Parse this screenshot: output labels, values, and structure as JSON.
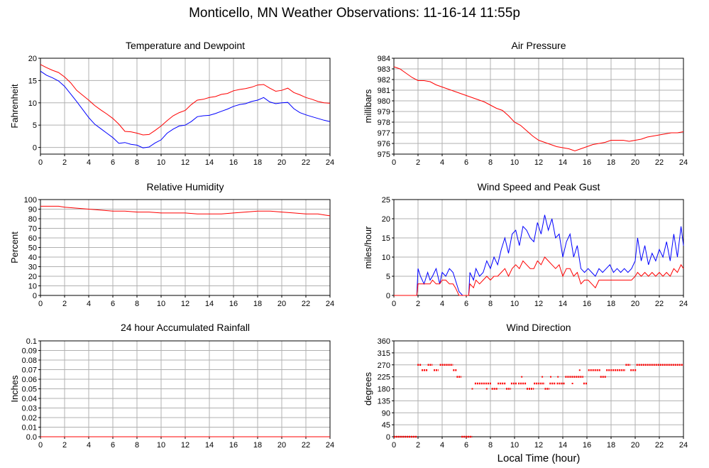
{
  "title": "Monticello, MN Weather Observations: 11-16-14 11:55p",
  "footer_xlabel": "Local Time (hour)",
  "colors": {
    "red": "#ff0000",
    "blue": "#0000ff",
    "grid": "#b0b0b0",
    "axis": "#000000"
  },
  "chart_data": [
    {
      "type": "line",
      "title": "Temperature and Dewpoint",
      "ylabel": "Fahrenheit",
      "xlabel": "",
      "xlim": [
        0,
        24
      ],
      "xticks": [
        0,
        2,
        4,
        6,
        8,
        10,
        12,
        14,
        16,
        18,
        20,
        22,
        24
      ],
      "ylim": [
        -1.5,
        20
      ],
      "yticks": [
        0,
        5,
        10,
        15,
        20
      ],
      "grid": true,
      "series": [
        {
          "color": "#ff0000",
          "x": [
            0,
            0.5,
            1,
            1.5,
            2,
            2.5,
            3,
            3.5,
            4,
            4.5,
            5,
            5.5,
            6,
            6.5,
            7,
            7.5,
            8,
            8.5,
            9,
            9.5,
            10,
            10.5,
            11,
            11.5,
            12,
            12.5,
            13,
            13.5,
            14,
            14.5,
            15,
            15.5,
            16,
            16.5,
            17,
            17.5,
            18,
            18.5,
            19,
            19.5,
            20,
            20.5,
            21,
            21.5,
            22,
            22.5,
            23,
            23.5,
            24
          ],
          "y": [
            18.6,
            17.9,
            17.3,
            16.8,
            15.8,
            14.5,
            12.8,
            11.7,
            10.6,
            9.4,
            8.4,
            7.5,
            6.5,
            5.2,
            3.6,
            3.5,
            3.2,
            2.8,
            2.9,
            3.8,
            4.8,
            6.0,
            7.1,
            7.8,
            8.3,
            9.6,
            10.6,
            10.8,
            11.2,
            11.4,
            11.9,
            12.1,
            12.7,
            13.0,
            13.2,
            13.5,
            14.0,
            14.1,
            13.3,
            12.6,
            12.8,
            13.3,
            12.3,
            11.8,
            11.2,
            10.8,
            10.3,
            10.0,
            9.9
          ]
        },
        {
          "color": "#0000ff",
          "x": [
            0,
            0.5,
            1,
            1.5,
            2,
            2.5,
            3,
            3.5,
            4,
            4.5,
            5,
            5.5,
            6,
            6.5,
            7,
            7.5,
            8,
            8.5,
            9,
            9.5,
            10,
            10.5,
            11,
            11.5,
            12,
            12.5,
            13,
            13.5,
            14,
            14.5,
            15,
            15.5,
            16,
            16.5,
            17,
            17.5,
            18,
            18.5,
            19,
            19.5,
            20,
            20.5,
            21,
            21.5,
            22,
            22.5,
            23,
            23.5,
            24
          ],
          "y": [
            17.1,
            16.2,
            15.6,
            14.9,
            13.7,
            12.0,
            10.3,
            8.5,
            6.7,
            5.2,
            4.2,
            3.2,
            2.2,
            0.9,
            1.1,
            0.7,
            0.5,
            -0.1,
            0.1,
            1.0,
            1.7,
            3.2,
            4.1,
            4.8,
            5.0,
            5.8,
            6.9,
            7.1,
            7.2,
            7.6,
            8.1,
            8.6,
            9.2,
            9.6,
            9.8,
            10.3,
            10.6,
            11.2,
            10.2,
            9.8,
            10.0,
            10.1,
            8.7,
            7.8,
            7.3,
            6.9,
            6.5,
            6.1,
            5.8
          ]
        }
      ]
    },
    {
      "type": "line",
      "title": "Air Pressure",
      "ylabel": "millibars",
      "xlabel": "",
      "xlim": [
        0,
        24
      ],
      "xticks": [
        0,
        2,
        4,
        6,
        8,
        10,
        12,
        14,
        16,
        18,
        20,
        22,
        24
      ],
      "ylim": [
        975,
        984
      ],
      "yticks": [
        975,
        976,
        977,
        978,
        979,
        980,
        981,
        982,
        983,
        984
      ],
      "grid": true,
      "series": [
        {
          "color": "#ff0000",
          "x": [
            0,
            0.5,
            1,
            1.5,
            2,
            2.5,
            3,
            3.5,
            4,
            4.5,
            5,
            5.5,
            6,
            6.5,
            7,
            7.5,
            8,
            8.5,
            9,
            9.5,
            10,
            10.5,
            11,
            11.5,
            12,
            12.5,
            13,
            13.5,
            14,
            14.5,
            15,
            15.5,
            16,
            16.5,
            17,
            17.5,
            18,
            18.5,
            19,
            19.5,
            20,
            20.5,
            21,
            21.5,
            22,
            22.5,
            23,
            23.5,
            24
          ],
          "y": [
            983.2,
            983.0,
            982.6,
            982.2,
            981.9,
            981.9,
            981.8,
            981.5,
            981.3,
            981.1,
            980.9,
            980.7,
            980.5,
            980.3,
            980.1,
            979.9,
            979.6,
            979.3,
            979.1,
            978.6,
            978.0,
            977.7,
            977.2,
            976.7,
            976.3,
            976.1,
            975.9,
            975.7,
            975.6,
            975.5,
            975.3,
            975.5,
            975.7,
            975.9,
            976.0,
            976.1,
            976.3,
            976.3,
            976.3,
            976.2,
            976.3,
            976.4,
            976.6,
            976.7,
            976.8,
            976.9,
            977.0,
            977.0,
            977.1
          ]
        }
      ]
    },
    {
      "type": "line",
      "title": "Relative Humidity",
      "ylabel": "Percent",
      "xlabel": "",
      "xlim": [
        0,
        24
      ],
      "xticks": [
        0,
        2,
        4,
        6,
        8,
        10,
        12,
        14,
        16,
        18,
        20,
        22,
        24
      ],
      "ylim": [
        0,
        100
      ],
      "yticks": [
        0,
        10,
        20,
        30,
        40,
        50,
        60,
        70,
        80,
        90,
        100
      ],
      "grid": true,
      "series": [
        {
          "color": "#ff0000",
          "x": [
            0,
            0.5,
            1,
            1.5,
            2,
            3,
            4,
            5,
            6,
            7,
            8,
            9,
            10,
            11,
            12,
            13,
            14,
            15,
            16,
            17,
            18,
            19,
            20,
            21,
            22,
            23,
            23.5,
            24
          ],
          "y": [
            93,
            93,
            93,
            93,
            92,
            91,
            90,
            89,
            88,
            88,
            87,
            87,
            86,
            86,
            86,
            85,
            85,
            85,
            86,
            87,
            88,
            88,
            87,
            86,
            85,
            85,
            84,
            83
          ]
        }
      ]
    },
    {
      "type": "line",
      "title": "Wind Speed and Peak Gust",
      "ylabel": "miles/hour",
      "xlabel": "",
      "xlim": [
        0,
        24
      ],
      "xticks": [
        0,
        2,
        4,
        6,
        8,
        10,
        12,
        14,
        16,
        18,
        20,
        22,
        24
      ],
      "ylim": [
        0,
        25
      ],
      "yticks": [
        0,
        5,
        10,
        15,
        20,
        25
      ],
      "grid": true,
      "series": [
        {
          "color": "#0000ff",
          "x": [
            0,
            1.9,
            2.0,
            2.2,
            2.5,
            2.8,
            3.0,
            3.2,
            3.5,
            3.8,
            4.0,
            4.3,
            4.6,
            4.9,
            5.1,
            5.4,
            5.7,
            6.0,
            6.2,
            6.3,
            6.6,
            6.8,
            7.1,
            7.4,
            7.7,
            8.0,
            8.3,
            8.6,
            8.9,
            9.2,
            9.5,
            9.8,
            10.1,
            10.4,
            10.7,
            11.0,
            11.3,
            11.6,
            11.9,
            12.2,
            12.5,
            12.8,
            13.1,
            13.4,
            13.7,
            14.0,
            14.3,
            14.6,
            14.9,
            15.2,
            15.5,
            15.8,
            16.1,
            16.4,
            16.7,
            17.0,
            17.3,
            17.6,
            17.9,
            18.2,
            18.5,
            18.8,
            19.1,
            19.4,
            19.7,
            20.0,
            20.2,
            20.5,
            20.8,
            21.1,
            21.4,
            21.7,
            22.0,
            22.3,
            22.6,
            22.9,
            23.2,
            23.5,
            23.8,
            24.0
          ],
          "y": [
            0,
            0,
            7,
            5,
            3,
            6,
            4,
            5,
            7,
            3,
            6,
            5,
            7,
            6,
            4,
            1,
            0,
            0,
            0,
            6,
            4,
            7,
            5,
            6,
            9,
            7,
            10,
            8,
            12,
            15,
            11,
            16,
            17,
            13,
            18,
            17,
            15,
            14,
            19,
            16,
            21,
            17,
            20,
            15,
            16,
            10,
            14,
            16,
            10,
            13,
            7,
            6,
            7,
            6,
            5,
            7,
            6,
            7,
            8,
            6,
            7,
            6,
            7,
            6,
            7,
            9,
            15,
            9,
            13,
            8,
            11,
            9,
            12,
            10,
            14,
            9,
            16,
            10,
            18,
            13
          ]
        },
        {
          "color": "#ff0000",
          "x": [
            0,
            1.9,
            2.0,
            2.2,
            2.5,
            2.8,
            3.0,
            3.2,
            3.5,
            3.8,
            4.0,
            4.3,
            4.6,
            4.9,
            5.1,
            5.4,
            5.7,
            6.0,
            6.2,
            6.3,
            6.6,
            6.8,
            7.1,
            7.4,
            7.7,
            8.0,
            8.3,
            8.6,
            8.9,
            9.2,
            9.5,
            9.8,
            10.1,
            10.4,
            10.7,
            11.0,
            11.3,
            11.6,
            11.9,
            12.2,
            12.5,
            12.8,
            13.1,
            13.4,
            13.7,
            14.0,
            14.3,
            14.6,
            14.9,
            15.2,
            15.5,
            15.8,
            16.1,
            16.4,
            16.7,
            17.0,
            17.3,
            17.6,
            17.9,
            18.2,
            18.5,
            18.8,
            19.1,
            19.4,
            19.7,
            20.0,
            20.2,
            20.5,
            20.8,
            21.1,
            21.4,
            21.7,
            22.0,
            22.3,
            22.6,
            22.9,
            23.2,
            23.5,
            23.8,
            24.0
          ],
          "y": [
            0,
            0,
            3,
            3,
            3,
            3,
            3,
            4,
            3,
            3,
            4,
            4,
            3,
            3,
            2,
            0,
            0,
            0,
            0,
            3,
            2,
            4,
            3,
            4,
            5,
            4,
            5,
            5,
            6,
            7,
            5,
            7,
            8,
            7,
            9,
            8,
            7,
            7,
            9,
            8,
            10,
            9,
            8,
            7,
            8,
            5,
            7,
            7,
            5,
            6,
            3,
            4,
            4,
            3,
            2,
            4,
            4,
            4,
            4,
            4,
            4,
            4,
            4,
            4,
            4,
            5,
            6,
            5,
            6,
            5,
            6,
            5,
            6,
            5,
            6,
            5,
            7,
            6,
            8,
            7
          ]
        }
      ]
    },
    {
      "type": "line",
      "title": "24 hour Accumulated Rainfall",
      "ylabel": "Inches",
      "xlabel": "",
      "xlim": [
        0,
        24
      ],
      "xticks": [
        0,
        2,
        4,
        6,
        8,
        10,
        12,
        14,
        16,
        18,
        20,
        22,
        24
      ],
      "ylim": [
        0,
        0.1
      ],
      "yticks": [
        0.0,
        0.01,
        0.02,
        0.03,
        0.04,
        0.05,
        0.06,
        0.07,
        0.08,
        0.09,
        0.1
      ],
      "ytick_labels": [
        "0.0",
        "0.01",
        "0.02",
        "0.03",
        "0.04",
        "0.05",
        "0.06",
        "0.07",
        "0.08",
        "0.09",
        "0.1"
      ],
      "grid": true,
      "series": [
        {
          "color": "#ff0000",
          "x": [
            0,
            24
          ],
          "y": [
            0,
            0
          ]
        }
      ]
    },
    {
      "type": "scatter",
      "title": "Wind Direction",
      "ylabel": "degrees",
      "xlabel": "Local Time (hour)",
      "xlim": [
        0,
        24
      ],
      "xticks": [
        0,
        2,
        4,
        6,
        8,
        10,
        12,
        14,
        16,
        18,
        20,
        22,
        24
      ],
      "ylim": [
        0,
        360
      ],
      "yticks": [
        0,
        45,
        90,
        135,
        180,
        225,
        270,
        315,
        360
      ],
      "grid": true,
      "series": [
        {
          "color": "#ff0000",
          "segments": [
            {
              "x0": 0,
              "x1": 1.9,
              "y": 0
            },
            {
              "x0": 1.95,
              "x1": 2.3,
              "y": 270
            },
            {
              "x0": 2.3,
              "x1": 2.8,
              "y": 250
            },
            {
              "x0": 2.8,
              "x1": 3.2,
              "y": 270
            },
            {
              "x0": 3.3,
              "x1": 3.7,
              "y": 250
            },
            {
              "x0": 3.8,
              "x1": 4.9,
              "y": 270
            },
            {
              "x0": 4.9,
              "x1": 5.2,
              "y": 250
            },
            {
              "x0": 5.2,
              "x1": 5.6,
              "y": 225
            },
            {
              "x0": 5.6,
              "x1": 6.5,
              "y": 0
            },
            {
              "x0": 6.7,
              "x1": 8.1,
              "y": 200
            },
            {
              "x0": 8.1,
              "x1": 8.6,
              "y": 180
            },
            {
              "x0": 8.6,
              "x1": 9.3,
              "y": 200
            },
            {
              "x0": 9.3,
              "x1": 9.7,
              "y": 180
            },
            {
              "x0": 9.7,
              "x1": 10.2,
              "y": 200
            },
            {
              "x0": 10.3,
              "x1": 11.0,
              "y": 200
            },
            {
              "x0": 11.0,
              "x1": 11.6,
              "y": 180
            },
            {
              "x0": 11.6,
              "x1": 12.5,
              "y": 200
            },
            {
              "x0": 12.5,
              "x1": 12.9,
              "y": 180
            },
            {
              "x0": 12.9,
              "x1": 13.4,
              "y": 200
            },
            {
              "x0": 13.5,
              "x1": 14.2,
              "y": 200
            },
            {
              "x0": 14.2,
              "x1": 15.7,
              "y": 225
            },
            {
              "x0": 15.7,
              "x1": 16.0,
              "y": 200
            },
            {
              "x0": 16.1,
              "x1": 17.1,
              "y": 250
            },
            {
              "x0": 17.1,
              "x1": 17.6,
              "y": 225
            },
            {
              "x0": 17.6,
              "x1": 19.2,
              "y": 250
            },
            {
              "x0": 19.2,
              "x1": 19.6,
              "y": 270
            },
            {
              "x0": 19.6,
              "x1": 20.1,
              "y": 250
            },
            {
              "x0": 20.1,
              "x1": 24,
              "y": 270
            }
          ],
          "points": [
            {
              "x": 6.5,
              "y": 180
            },
            {
              "x": 10.6,
              "y": 225
            },
            {
              "x": 12.3,
              "y": 225
            },
            {
              "x": 13.0,
              "y": 225
            },
            {
              "x": 13.6,
              "y": 225
            },
            {
              "x": 15.4,
              "y": 250
            },
            {
              "x": 7.7,
              "y": 180
            },
            {
              "x": 14.8,
              "y": 200
            }
          ]
        }
      ]
    }
  ]
}
